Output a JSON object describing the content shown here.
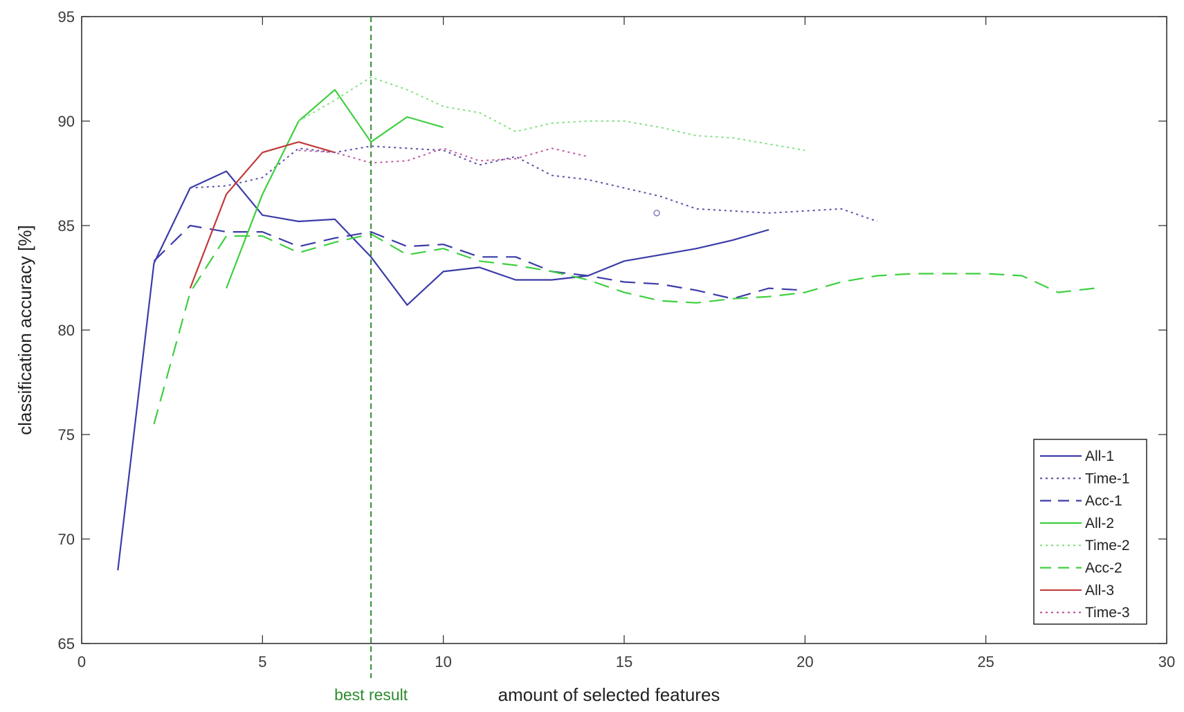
{
  "chart_data": {
    "type": "line",
    "xlabel": "amount of selected features",
    "ylabel": "classification accuracy [%]",
    "xlim": [
      0,
      30
    ],
    "ylim": [
      65,
      95
    ],
    "xticks": [
      0,
      5,
      10,
      15,
      20,
      25,
      30
    ],
    "yticks": [
      65,
      70,
      75,
      80,
      85,
      90,
      95
    ],
    "grid": false,
    "legend_position": "bottom-right",
    "series": [
      {
        "name": "All-1",
        "color": "#3b3ba8",
        "style": "solid",
        "x": [
          1,
          2,
          3,
          4,
          5,
          6,
          7,
          8,
          9,
          10,
          11,
          12,
          13,
          14,
          15,
          16,
          17,
          18,
          19
        ],
        "y": [
          68.5,
          83.2,
          86.8,
          87.6,
          85.5,
          85.2,
          85.3,
          83.5,
          81.2,
          82.8,
          83.0,
          82.4,
          82.4,
          82.6,
          83.3,
          83.6,
          83.9,
          84.3,
          84.8
        ]
      },
      {
        "name": "Time-1",
        "color": "#5c4fa8",
        "style": "dotted",
        "x": [
          3,
          4,
          5,
          6,
          7,
          8,
          9,
          10,
          11,
          12,
          13,
          14,
          15,
          16,
          17,
          18,
          19,
          20,
          21,
          22
        ],
        "y": [
          86.8,
          86.9,
          87.3,
          88.7,
          88.5,
          88.8,
          88.7,
          88.6,
          87.9,
          88.3,
          87.4,
          87.2,
          86.8,
          86.4,
          85.8,
          85.7,
          85.6,
          85.7,
          85.8,
          85.2
        ]
      },
      {
        "name": "Acc-1",
        "color": "#3b3ba8",
        "style": "dashed",
        "x": [
          2,
          3,
          4,
          5,
          6,
          7,
          8,
          9,
          10,
          11,
          12,
          13,
          14,
          15,
          16,
          17,
          18,
          19,
          20
        ],
        "y": [
          83.3,
          85.0,
          84.7,
          84.7,
          84.0,
          84.4,
          84.7,
          84.0,
          84.1,
          83.5,
          83.5,
          82.8,
          82.6,
          82.3,
          82.2,
          81.9,
          81.5,
          82.0,
          81.9
        ]
      },
      {
        "name": "All-2",
        "color": "#3ecf3e",
        "style": "solid",
        "x": [
          4,
          5,
          6,
          7,
          8,
          9,
          10
        ],
        "y": [
          82.0,
          86.5,
          90.0,
          91.5,
          89.0,
          90.2,
          89.7
        ]
      },
      {
        "name": "Time-2",
        "color": "#7fe07f",
        "style": "dotted",
        "x": [
          6,
          7,
          8,
          9,
          10,
          11,
          12,
          13,
          14,
          15,
          16,
          17,
          18,
          19,
          20
        ],
        "y": [
          90.0,
          91.0,
          92.1,
          91.5,
          90.7,
          90.4,
          89.5,
          89.9,
          90.0,
          90.0,
          89.7,
          89.3,
          89.2,
          88.9,
          88.6
        ]
      },
      {
        "name": "Acc-2",
        "color": "#3ecf3e",
        "style": "dashed",
        "x": [
          2,
          3,
          4,
          5,
          6,
          7,
          8,
          9,
          10,
          11,
          12,
          13,
          14,
          15,
          16,
          17,
          18,
          19,
          20,
          21,
          22,
          23,
          24,
          25,
          26,
          27,
          28
        ],
        "y": [
          75.5,
          81.8,
          84.5,
          84.5,
          83.7,
          84.2,
          84.6,
          83.6,
          83.9,
          83.3,
          83.1,
          82.8,
          82.4,
          81.8,
          81.4,
          81.3,
          81.5,
          81.6,
          81.8,
          82.3,
          82.6,
          82.7,
          82.7,
          82.7,
          82.6,
          81.8,
          82.0
        ]
      },
      {
        "name": "All-3",
        "color": "#c03a3a",
        "style": "solid",
        "x": [
          3,
          4,
          5,
          6,
          7
        ],
        "y": [
          82.0,
          86.5,
          88.5,
          89.0,
          88.5
        ]
      },
      {
        "name": "Time-3",
        "color": "#c05aa0",
        "style": "dotted",
        "x": [
          6,
          7,
          8,
          9,
          10,
          11,
          12,
          13,
          14
        ],
        "y": [
          88.6,
          88.5,
          88.0,
          88.1,
          88.7,
          88.1,
          88.2,
          88.7,
          88.3
        ]
      }
    ],
    "annotations": [
      {
        "text": "best result",
        "x": 8,
        "color": "#2e8b2e",
        "style": "dashed-vertical-line"
      }
    ],
    "stray_marker": {
      "x": 15.9,
      "y": 85.6,
      "color": "#8080c0"
    }
  }
}
